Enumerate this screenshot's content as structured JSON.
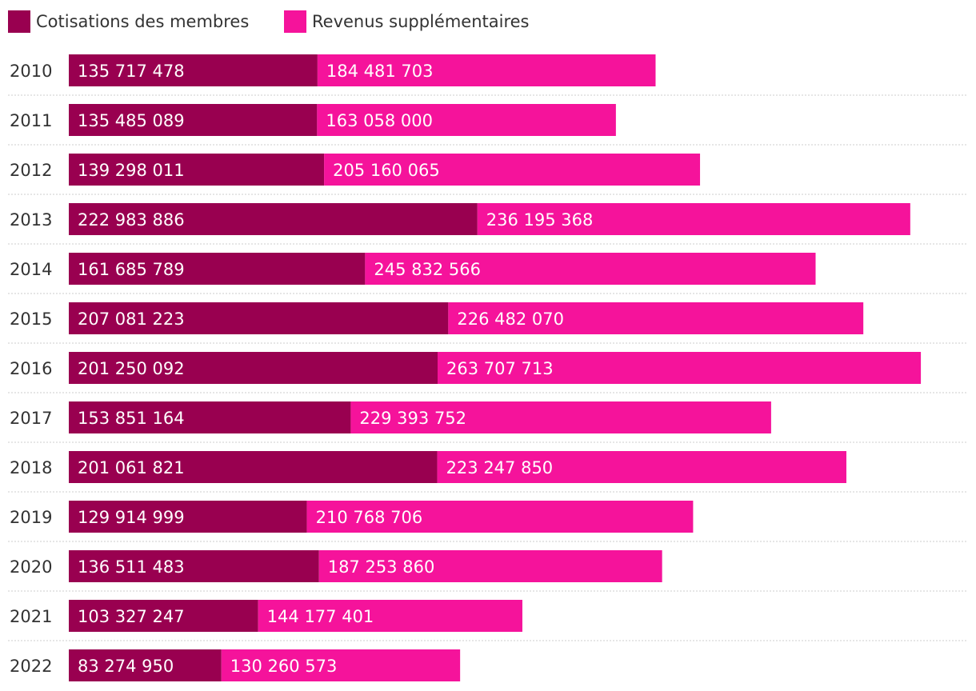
{
  "chart_data": {
    "type": "bar",
    "orientation": "horizontal",
    "stacked": true,
    "title": "",
    "xlabel": "",
    "ylabel": "",
    "categories": [
      "2010",
      "2011",
      "2012",
      "2013",
      "2014",
      "2015",
      "2016",
      "2017",
      "2018",
      "2019",
      "2020",
      "2021",
      "2022"
    ],
    "series": [
      {
        "name": "Cotisations des membres",
        "color": "#990050",
        "values": [
          135717478,
          135485089,
          139298011,
          222983886,
          161685789,
          207081223,
          201250092,
          153851164,
          201061821,
          129914999,
          136511483,
          103327247,
          83274950
        ],
        "labels": [
          "135 717 478",
          "135 485 089",
          "139 298 011",
          "222 983 886",
          "161 685 789",
          "207 081 223",
          "201 250 092",
          "153 851 164",
          "201 061 821",
          "129 914 999",
          "136 511 483",
          "103 327 247",
          "83 274 950"
        ]
      },
      {
        "name": "Revenus supplémentaires",
        "color": "#f5139b",
        "values": [
          184481703,
          163058000,
          205160065,
          236195368,
          245832566,
          226482070,
          263707713,
          229393752,
          223247850,
          210768706,
          187253860,
          144177401,
          130260573
        ],
        "labels": [
          "184 481 703",
          "163 058 000",
          "205 160 065",
          "236 195 368",
          "245 832 566",
          "226 482 070",
          "263 707 713",
          "229 393 752",
          "223 247 850",
          "210 768 706",
          "187 253 860",
          "144 177 401",
          "130 260 573"
        ]
      }
    ],
    "legend": "top-left",
    "grid": false,
    "xaxis_visible": false,
    "data_labels": "inside-bar-start"
  }
}
